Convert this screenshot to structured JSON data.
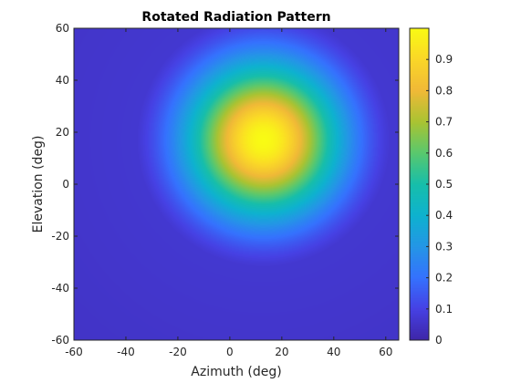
{
  "chart_data": {
    "type": "heatmap",
    "title": "Rotated Radiation Pattern",
    "xlabel": "Azimuth (deg)",
    "ylabel": "Elevation (deg)",
    "xlim": [
      -60,
      65
    ],
    "ylim": [
      -60,
      60
    ],
    "x_ticks": [
      -60,
      -40,
      -20,
      0,
      20,
      40,
      60
    ],
    "y_ticks": [
      -60,
      -40,
      -20,
      0,
      20,
      40,
      60
    ],
    "colorbar": {
      "colormap": "parula",
      "range": [
        0,
        1
      ],
      "ticks": [
        0,
        0.1,
        0.2,
        0.3,
        0.4,
        0.5,
        0.6,
        0.7,
        0.8,
        0.9
      ]
    },
    "peak": {
      "azimuth": 13,
      "elevation": 17,
      "value": 1.0
    },
    "grid": false,
    "legend": "none"
  }
}
